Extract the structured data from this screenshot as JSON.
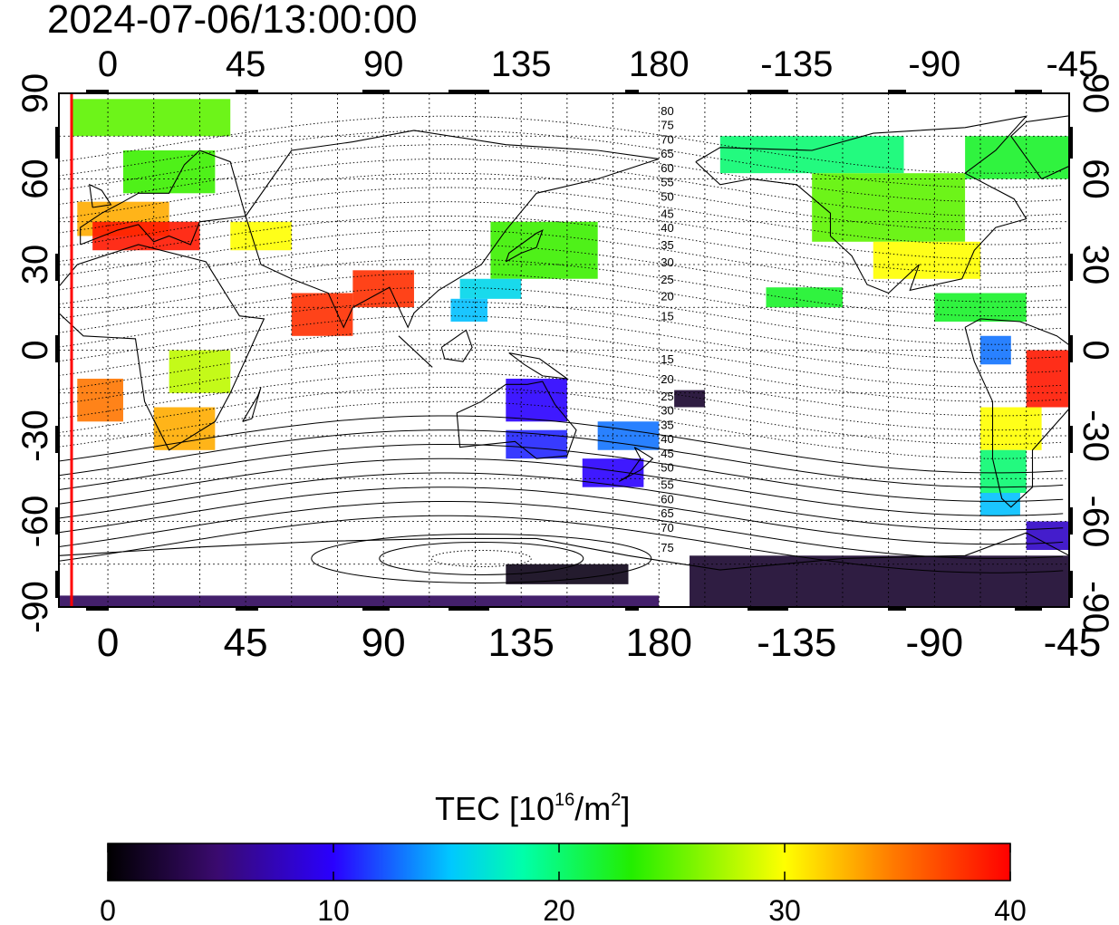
{
  "title": "2024-07-06/13:00:00",
  "map": {
    "projection": "equirectangular",
    "lon_start": -16,
    "lon_end": 314,
    "lat_min": -90,
    "lat_max": 90,
    "top_lon_ticks": [
      "0",
      "45",
      "90",
      "135",
      "180",
      "-135",
      "-90",
      "-45"
    ],
    "bottom_lon_ticks": [
      "0",
      "45",
      "90",
      "135",
      "180",
      "-135",
      "-90",
      "-45"
    ],
    "left_lat_ticks": [
      "90",
      "60",
      "30",
      "0",
      "-30",
      "-60",
      "-90"
    ],
    "right_lat_ticks": [
      "90",
      "60",
      "30",
      "0",
      "-30",
      "-60",
      "-90"
    ],
    "terminator_color": "#ff0000",
    "contour_labels_north": [
      "80",
      "75",
      "70",
      "65",
      "60",
      "55",
      "50",
      "45",
      "40",
      "35",
      "30",
      "25",
      "20",
      "15"
    ],
    "contour_labels_south": [
      "15",
      "20",
      "25",
      "30",
      "35",
      "40",
      "45",
      "50",
      "55",
      "60",
      "65",
      "70",
      "75"
    ]
  },
  "colorbar": {
    "label_main": "TEC  [10",
    "label_exp1": "16",
    "label_mid": "/m",
    "label_exp2": "2",
    "label_end": "]",
    "min": 0,
    "max": 40,
    "ticks": [
      "0",
      "10",
      "20",
      "30",
      "40"
    ],
    "stops": [
      "#000000",
      "#3a0a6e",
      "#2a00ff",
      "#00c8ff",
      "#00ffaa",
      "#22ee00",
      "#ffff00",
      "#ff7a00",
      "#ff0000"
    ]
  }
}
